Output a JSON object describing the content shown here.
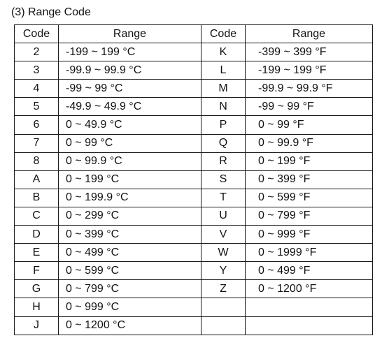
{
  "caption": "(3) Range Code",
  "headers": {
    "code_left": "Code",
    "range_left": "Range",
    "code_right": "Code",
    "range_right": "Range"
  },
  "rows": [
    {
      "code_left": "2",
      "range_left": "-199 ~ 199 °C",
      "code_right": "K",
      "range_right": "-399 ~ 399 °F"
    },
    {
      "code_left": "3",
      "range_left": "-99.9 ~ 99.9 °C",
      "code_right": "L",
      "range_right": "-199 ~ 199 °F"
    },
    {
      "code_left": "4",
      "range_left": "-99 ~ 99 °C",
      "code_right": "M",
      "range_right": "-99.9 ~ 99.9 °F"
    },
    {
      "code_left": "5",
      "range_left": "-49.9 ~ 49.9 °C",
      "code_right": "N",
      "range_right": "-99 ~ 99 °F"
    },
    {
      "code_left": "6",
      "range_left": "0 ~ 49.9 °C",
      "code_right": "P",
      "range_right": "0 ~ 99 °F"
    },
    {
      "code_left": "7",
      "range_left": "0 ~ 99 °C",
      "code_right": "Q",
      "range_right": "0 ~ 99.9 °F"
    },
    {
      "code_left": "8",
      "range_left": "0 ~ 99.9 °C",
      "code_right": "R",
      "range_right": "0 ~ 199 °F"
    },
    {
      "code_left": "A",
      "range_left": "0 ~ 199 °C",
      "code_right": "S",
      "range_right": "0 ~ 399 °F"
    },
    {
      "code_left": "B",
      "range_left": "0 ~ 199.9 °C",
      "code_right": "T",
      "range_right": "0 ~ 599 °F"
    },
    {
      "code_left": "C",
      "range_left": "0 ~ 299 °C",
      "code_right": "U",
      "range_right": "0 ~ 799 °F"
    },
    {
      "code_left": "D",
      "range_left": "0 ~ 399 °C",
      "code_right": "V",
      "range_right": "0 ~ 999 °F"
    },
    {
      "code_left": "E",
      "range_left": "0 ~ 499 °C",
      "code_right": "W",
      "range_right": "0 ~ 1999 °F"
    },
    {
      "code_left": "F",
      "range_left": "0 ~ 599 °C",
      "code_right": "Y",
      "range_right": "0 ~ 499 °F"
    },
    {
      "code_left": "G",
      "range_left": "0 ~ 799 °C",
      "code_right": "Z",
      "range_right": "0 ~ 1200 °F"
    },
    {
      "code_left": "H",
      "range_left": "0 ~ 999 °C",
      "code_right": "",
      "range_right": ""
    },
    {
      "code_left": "J",
      "range_left": "0 ~ 1200 °C",
      "code_right": "",
      "range_right": ""
    }
  ]
}
